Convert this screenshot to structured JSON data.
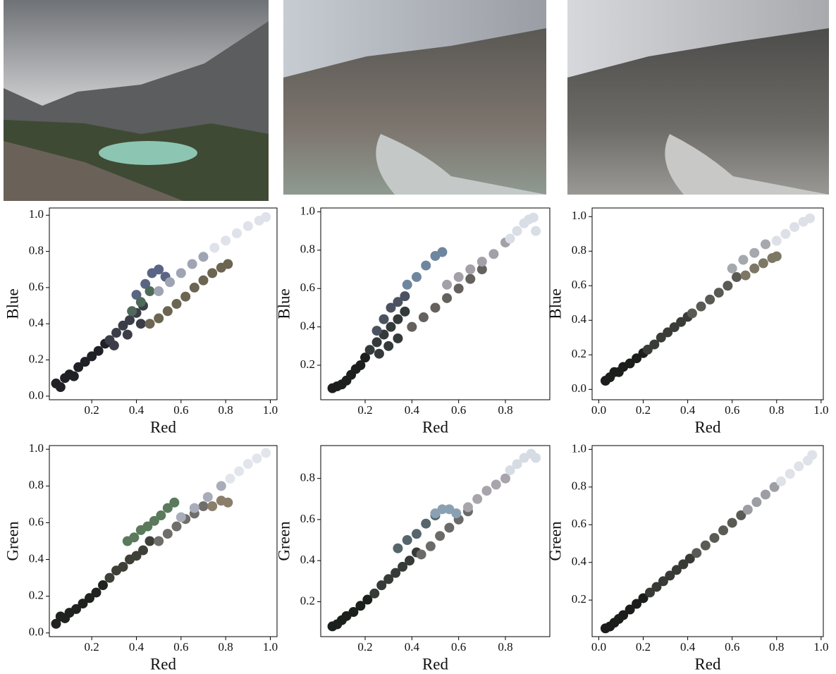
{
  "chart_data": [
    {
      "type": "scatter",
      "xlabel": "Red",
      "ylabel": "Blue",
      "xlim": [
        0.01,
        1.03
      ],
      "ylim": [
        -0.02,
        1.04
      ],
      "xticks": [
        0.2,
        0.4,
        0.6,
        0.8,
        {
          "value": 1,
          "label": "1.0"
        }
      ],
      "yticks": [
        {
          "value": 0,
          "label": "0.0"
        },
        0.2,
        0.4,
        0.6,
        0.8,
        {
          "value": 1,
          "label": "1.0"
        }
      ],
      "series": [
        {
          "color": "#1f2126",
          "x": [
            0.04,
            0.06,
            0.08,
            0.1,
            0.12,
            0.14,
            0.17,
            0.2,
            0.23,
            0.26
          ],
          "values": [
            0.07,
            0.05,
            0.1,
            0.12,
            0.11,
            0.16,
            0.19,
            0.22,
            0.25,
            0.29
          ]
        },
        {
          "color": "#3b3e48",
          "x": [
            0.28,
            0.31,
            0.34,
            0.37,
            0.4,
            0.43,
            0.3,
            0.36,
            0.42
          ],
          "values": [
            0.31,
            0.35,
            0.39,
            0.42,
            0.46,
            0.5,
            0.28,
            0.34,
            0.4
          ]
        },
        {
          "color": "#6b6552",
          "x": [
            0.46,
            0.5,
            0.54,
            0.58,
            0.62,
            0.66,
            0.7,
            0.74,
            0.78,
            0.81
          ],
          "values": [
            0.4,
            0.43,
            0.47,
            0.51,
            0.55,
            0.6,
            0.64,
            0.68,
            0.71,
            0.73
          ]
        },
        {
          "color": "#5a6584",
          "x": [
            0.4,
            0.44,
            0.47,
            0.5,
            0.53
          ],
          "values": [
            0.56,
            0.62,
            0.68,
            0.7,
            0.66
          ]
        },
        {
          "color": "#4f6a5a",
          "x": [
            0.38,
            0.42,
            0.46
          ],
          "values": [
            0.47,
            0.52,
            0.58
          ]
        },
        {
          "color": "#9fa4b3",
          "x": [
            0.5,
            0.55,
            0.6,
            0.65,
            0.7
          ],
          "values": [
            0.58,
            0.63,
            0.68,
            0.73,
            0.77
          ]
        },
        {
          "color": "#dfe2ea",
          "x": [
            0.75,
            0.8,
            0.85,
            0.9,
            0.95,
            0.98
          ],
          "values": [
            0.82,
            0.86,
            0.9,
            0.94,
            0.97,
            0.99
          ]
        }
      ]
    },
    {
      "type": "scatter",
      "xlabel": "Red",
      "ylabel": "Blue",
      "xlim": [
        0.01,
        0.99
      ],
      "ylim": [
        0.02,
        1.02
      ],
      "xticks": [
        0.2,
        0.4,
        0.6,
        0.8
      ],
      "yticks": [
        0.2,
        0.4,
        0.6,
        0.8,
        {
          "value": 1,
          "label": "1.0"
        }
      ],
      "series": [
        {
          "color": "#1c1f1d",
          "x": [
            0.06,
            0.08,
            0.1,
            0.12,
            0.14,
            0.16,
            0.18,
            0.2
          ],
          "values": [
            0.08,
            0.09,
            0.1,
            0.12,
            0.15,
            0.18,
            0.2,
            0.24
          ]
        },
        {
          "color": "#34393a",
          "x": [
            0.22,
            0.25,
            0.28,
            0.31,
            0.34,
            0.37,
            0.26,
            0.3,
            0.34
          ],
          "values": [
            0.28,
            0.32,
            0.36,
            0.4,
            0.44,
            0.48,
            0.26,
            0.3,
            0.34
          ]
        },
        {
          "color": "#4b5260",
          "x": [
            0.25,
            0.28,
            0.31,
            0.34,
            0.37
          ],
          "values": [
            0.38,
            0.44,
            0.5,
            0.53,
            0.56
          ]
        },
        {
          "color": "#6f86a0",
          "x": [
            0.38,
            0.42,
            0.46,
            0.5,
            0.53
          ],
          "values": [
            0.62,
            0.66,
            0.72,
            0.77,
            0.79
          ]
        },
        {
          "color": "#65615e",
          "x": [
            0.4,
            0.45,
            0.5,
            0.55,
            0.6,
            0.65,
            0.7
          ],
          "values": [
            0.4,
            0.45,
            0.5,
            0.55,
            0.6,
            0.65,
            0.7
          ]
        },
        {
          "color": "#a3a0a8",
          "x": [
            0.55,
            0.6,
            0.65,
            0.7,
            0.75,
            0.8
          ],
          "values": [
            0.62,
            0.66,
            0.7,
            0.74,
            0.78,
            0.84
          ]
        },
        {
          "color": "#d8dde6",
          "x": [
            0.82,
            0.85,
            0.88,
            0.9,
            0.92,
            0.93
          ],
          "values": [
            0.86,
            0.9,
            0.94,
            0.96,
            0.97,
            0.9
          ]
        }
      ]
    },
    {
      "type": "scatter",
      "xlabel": "Red",
      "ylabel": "Blue",
      "xlim": [
        -0.03,
        1.01
      ],
      "ylim": [
        -0.06,
        1.05
      ],
      "xticks": [
        {
          "value": 0,
          "label": "0.0"
        },
        0.2,
        0.4,
        0.6,
        0.8,
        {
          "value": 1,
          "label": "1.0"
        }
      ],
      "yticks": [
        {
          "value": 0,
          "label": "0.0"
        },
        0.2,
        0.4,
        0.6,
        0.8,
        {
          "value": 1,
          "label": "1.0"
        }
      ],
      "series": [
        {
          "color": "#1c1e1b",
          "x": [
            0.03,
            0.05,
            0.07,
            0.09,
            0.11,
            0.14,
            0.17,
            0.2
          ],
          "values": [
            0.05,
            0.07,
            0.1,
            0.1,
            0.13,
            0.15,
            0.18,
            0.21
          ]
        },
        {
          "color": "#3a3c38",
          "x": [
            0.22,
            0.25,
            0.28,
            0.31,
            0.34,
            0.37,
            0.4
          ],
          "values": [
            0.23,
            0.26,
            0.3,
            0.33,
            0.36,
            0.39,
            0.42
          ]
        },
        {
          "color": "#5a5a54",
          "x": [
            0.42,
            0.46,
            0.5,
            0.54,
            0.58,
            0.62
          ],
          "values": [
            0.44,
            0.48,
            0.52,
            0.56,
            0.6,
            0.65
          ]
        },
        {
          "color": "#7d7765",
          "x": [
            0.66,
            0.7,
            0.74,
            0.78,
            0.8
          ],
          "values": [
            0.66,
            0.7,
            0.73,
            0.76,
            0.77
          ]
        },
        {
          "color": "#a5a8ad",
          "x": [
            0.6,
            0.65,
            0.7,
            0.75
          ],
          "values": [
            0.7,
            0.75,
            0.79,
            0.84
          ]
        },
        {
          "color": "#dde0e6",
          "x": [
            0.8,
            0.84,
            0.88,
            0.92,
            0.95
          ],
          "values": [
            0.86,
            0.9,
            0.94,
            0.97,
            0.99
          ]
        }
      ]
    },
    {
      "type": "scatter",
      "xlabel": "Red",
      "ylabel": "Green",
      "xlim": [
        0.01,
        1.03
      ],
      "ylim": [
        -0.02,
        1.02
      ],
      "xticks": [
        0.2,
        0.4,
        0.6,
        0.8,
        {
          "value": 1,
          "label": "1.0"
        }
      ],
      "yticks": [
        {
          "value": 0,
          "label": "0.0"
        },
        0.2,
        0.4,
        0.6,
        0.8,
        {
          "value": 1,
          "label": "1.0"
        }
      ],
      "series": [
        {
          "color": "#1f221f",
          "x": [
            0.04,
            0.06,
            0.08,
            0.1,
            0.13,
            0.16,
            0.19,
            0.22,
            0.25
          ],
          "values": [
            0.05,
            0.09,
            0.08,
            0.11,
            0.13,
            0.16,
            0.19,
            0.22,
            0.26
          ]
        },
        {
          "color": "#3e4038",
          "x": [
            0.28,
            0.31,
            0.34,
            0.37,
            0.4,
            0.43,
            0.46
          ],
          "values": [
            0.3,
            0.34,
            0.36,
            0.4,
            0.42,
            0.45,
            0.5
          ]
        },
        {
          "color": "#5b7a5c",
          "x": [
            0.36,
            0.39,
            0.42,
            0.45,
            0.48,
            0.51,
            0.54,
            0.57
          ],
          "values": [
            0.5,
            0.52,
            0.56,
            0.58,
            0.61,
            0.64,
            0.68,
            0.71
          ]
        },
        {
          "color": "#6f6e6a",
          "x": [
            0.5,
            0.54,
            0.58,
            0.62,
            0.66,
            0.7
          ],
          "values": [
            0.5,
            0.54,
            0.58,
            0.62,
            0.65,
            0.69
          ]
        },
        {
          "color": "#8a7f6c",
          "x": [
            0.74,
            0.78,
            0.81
          ],
          "values": [
            0.69,
            0.72,
            0.71
          ]
        },
        {
          "color": "#a9adb9",
          "x": [
            0.6,
            0.66,
            0.72,
            0.78
          ],
          "values": [
            0.63,
            0.68,
            0.74,
            0.8
          ]
        },
        {
          "color": "#e2e5ec",
          "x": [
            0.82,
            0.86,
            0.9,
            0.94,
            0.98
          ],
          "values": [
            0.84,
            0.88,
            0.92,
            0.95,
            0.98
          ]
        }
      ]
    },
    {
      "type": "scatter",
      "xlabel": "Red",
      "ylabel": "Green",
      "xlim": [
        0.01,
        0.99
      ],
      "ylim": [
        0.03,
        0.96
      ],
      "xticks": [
        0.2,
        0.4,
        0.6,
        0.8
      ],
      "yticks": [
        0.2,
        0.4,
        0.6,
        0.8
      ],
      "series": [
        {
          "color": "#1c201c",
          "x": [
            0.06,
            0.08,
            0.1,
            0.12,
            0.15,
            0.18,
            0.21
          ],
          "values": [
            0.08,
            0.09,
            0.11,
            0.13,
            0.15,
            0.18,
            0.21
          ]
        },
        {
          "color": "#363b37",
          "x": [
            0.24,
            0.27,
            0.3,
            0.33,
            0.36,
            0.39,
            0.42
          ],
          "values": [
            0.24,
            0.28,
            0.31,
            0.34,
            0.37,
            0.4,
            0.44
          ]
        },
        {
          "color": "#55666c",
          "x": [
            0.34,
            0.38,
            0.42,
            0.46,
            0.5
          ],
          "values": [
            0.46,
            0.5,
            0.53,
            0.58,
            0.62
          ]
        },
        {
          "color": "#6c6a68",
          "x": [
            0.44,
            0.48,
            0.52,
            0.56,
            0.6,
            0.64
          ],
          "values": [
            0.43,
            0.47,
            0.52,
            0.56,
            0.6,
            0.64
          ]
        },
        {
          "color": "#8aa1b3",
          "x": [
            0.5,
            0.53,
            0.56,
            0.59
          ],
          "values": [
            0.63,
            0.65,
            0.65,
            0.63
          ]
        },
        {
          "color": "#a8a4ab",
          "x": [
            0.64,
            0.68,
            0.72,
            0.76,
            0.8
          ],
          "values": [
            0.66,
            0.7,
            0.74,
            0.77,
            0.8
          ]
        },
        {
          "color": "#d6dce4",
          "x": [
            0.82,
            0.85,
            0.88,
            0.91,
            0.93
          ],
          "values": [
            0.84,
            0.87,
            0.9,
            0.92,
            0.9
          ]
        }
      ]
    },
    {
      "type": "scatter",
      "xlabel": "Red",
      "ylabel": "Green",
      "xlim": [
        -0.03,
        1.01
      ],
      "ylim": [
        0.006,
        1.02
      ],
      "xticks": [
        {
          "value": 0,
          "label": "0.0"
        },
        0.2,
        0.4,
        0.6,
        0.8,
        {
          "value": 1,
          "label": "1.0"
        }
      ],
      "yticks": [
        0.2,
        0.4,
        0.6,
        0.8,
        {
          "value": 1,
          "label": "1.0"
        }
      ],
      "series": [
        {
          "color": "#1b1d1a",
          "x": [
            0.03,
            0.05,
            0.07,
            0.09,
            0.11,
            0.14,
            0.17,
            0.2
          ],
          "values": [
            0.05,
            0.06,
            0.08,
            0.1,
            0.12,
            0.15,
            0.18,
            0.21
          ]
        },
        {
          "color": "#383a36",
          "x": [
            0.23,
            0.26,
            0.29,
            0.32,
            0.35,
            0.38,
            0.41
          ],
          "values": [
            0.24,
            0.27,
            0.3,
            0.33,
            0.36,
            0.39,
            0.42
          ]
        },
        {
          "color": "#5b5b56",
          "x": [
            0.44,
            0.48,
            0.52,
            0.56,
            0.6,
            0.64
          ],
          "values": [
            0.45,
            0.49,
            0.53,
            0.57,
            0.61,
            0.65
          ]
        },
        {
          "color": "#9c9ea3",
          "x": [
            0.67,
            0.71,
            0.75,
            0.79
          ],
          "values": [
            0.68,
            0.72,
            0.76,
            0.8
          ]
        },
        {
          "color": "#dfe2e8",
          "x": [
            0.82,
            0.86,
            0.9,
            0.94,
            0.96
          ],
          "values": [
            0.83,
            0.87,
            0.91,
            0.94,
            0.97
          ]
        }
      ]
    }
  ]
}
